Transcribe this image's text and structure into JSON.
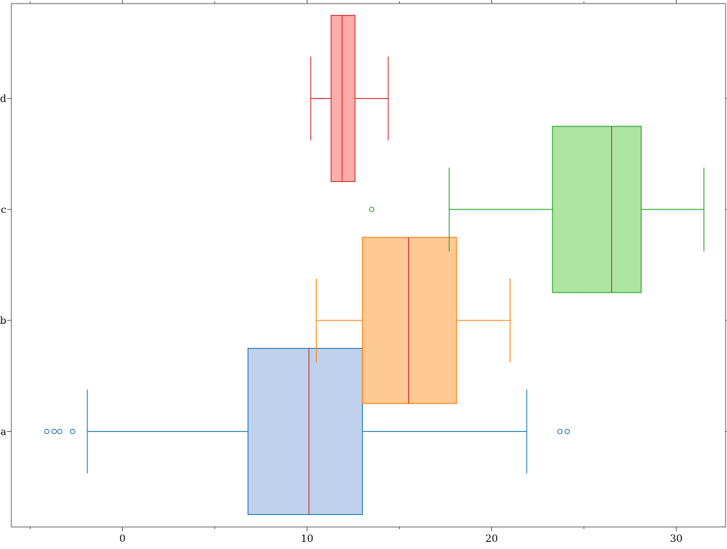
{
  "chart_data": {
    "type": "boxplot",
    "orientation": "horizontal",
    "title": "",
    "xlabel": "",
    "ylabel": "",
    "xlim": [
      -5,
      33.5
    ],
    "x_ticks": [
      0,
      10,
      20,
      30
    ],
    "x_minor_ticks": [
      -5,
      5,
      15,
      25
    ],
    "grid": false,
    "categories": [
      "a",
      "b",
      "c",
      "d"
    ],
    "series": [
      {
        "name": "a",
        "whisker_low": -1.9,
        "q1": 6.8,
        "median": 10.1,
        "q3": 13.0,
        "whisker_high": 21.9,
        "outliers": [
          -4.1,
          -3.7,
          -3.4,
          -2.7,
          23.7,
          24.1
        ]
      },
      {
        "name": "b",
        "whisker_low": 10.5,
        "q1": 13.0,
        "median": 15.5,
        "q3": 18.1,
        "whisker_high": 21.0,
        "outliers": []
      },
      {
        "name": "c",
        "whisker_low": 17.7,
        "q1": 23.3,
        "median": 26.5,
        "q3": 28.1,
        "whisker_high": 31.5,
        "outliers": [
          13.5
        ]
      },
      {
        "name": "d",
        "whisker_low": 10.2,
        "q1": 11.3,
        "median": 11.9,
        "q3": 12.6,
        "whisker_high": 14.4,
        "outliers": []
      }
    ]
  },
  "colors": {
    "a": {
      "edge": "#1f77b4",
      "fill": "#aec7e8"
    },
    "b": {
      "edge": "#ff7f0e",
      "fill": "#ffbb78"
    },
    "c": {
      "edge": "#2ca02c",
      "fill": "#98df8a"
    },
    "d": {
      "edge": "#d62728",
      "fill": "#ff9896"
    },
    "median": "#d62728",
    "axes": "#555555"
  }
}
